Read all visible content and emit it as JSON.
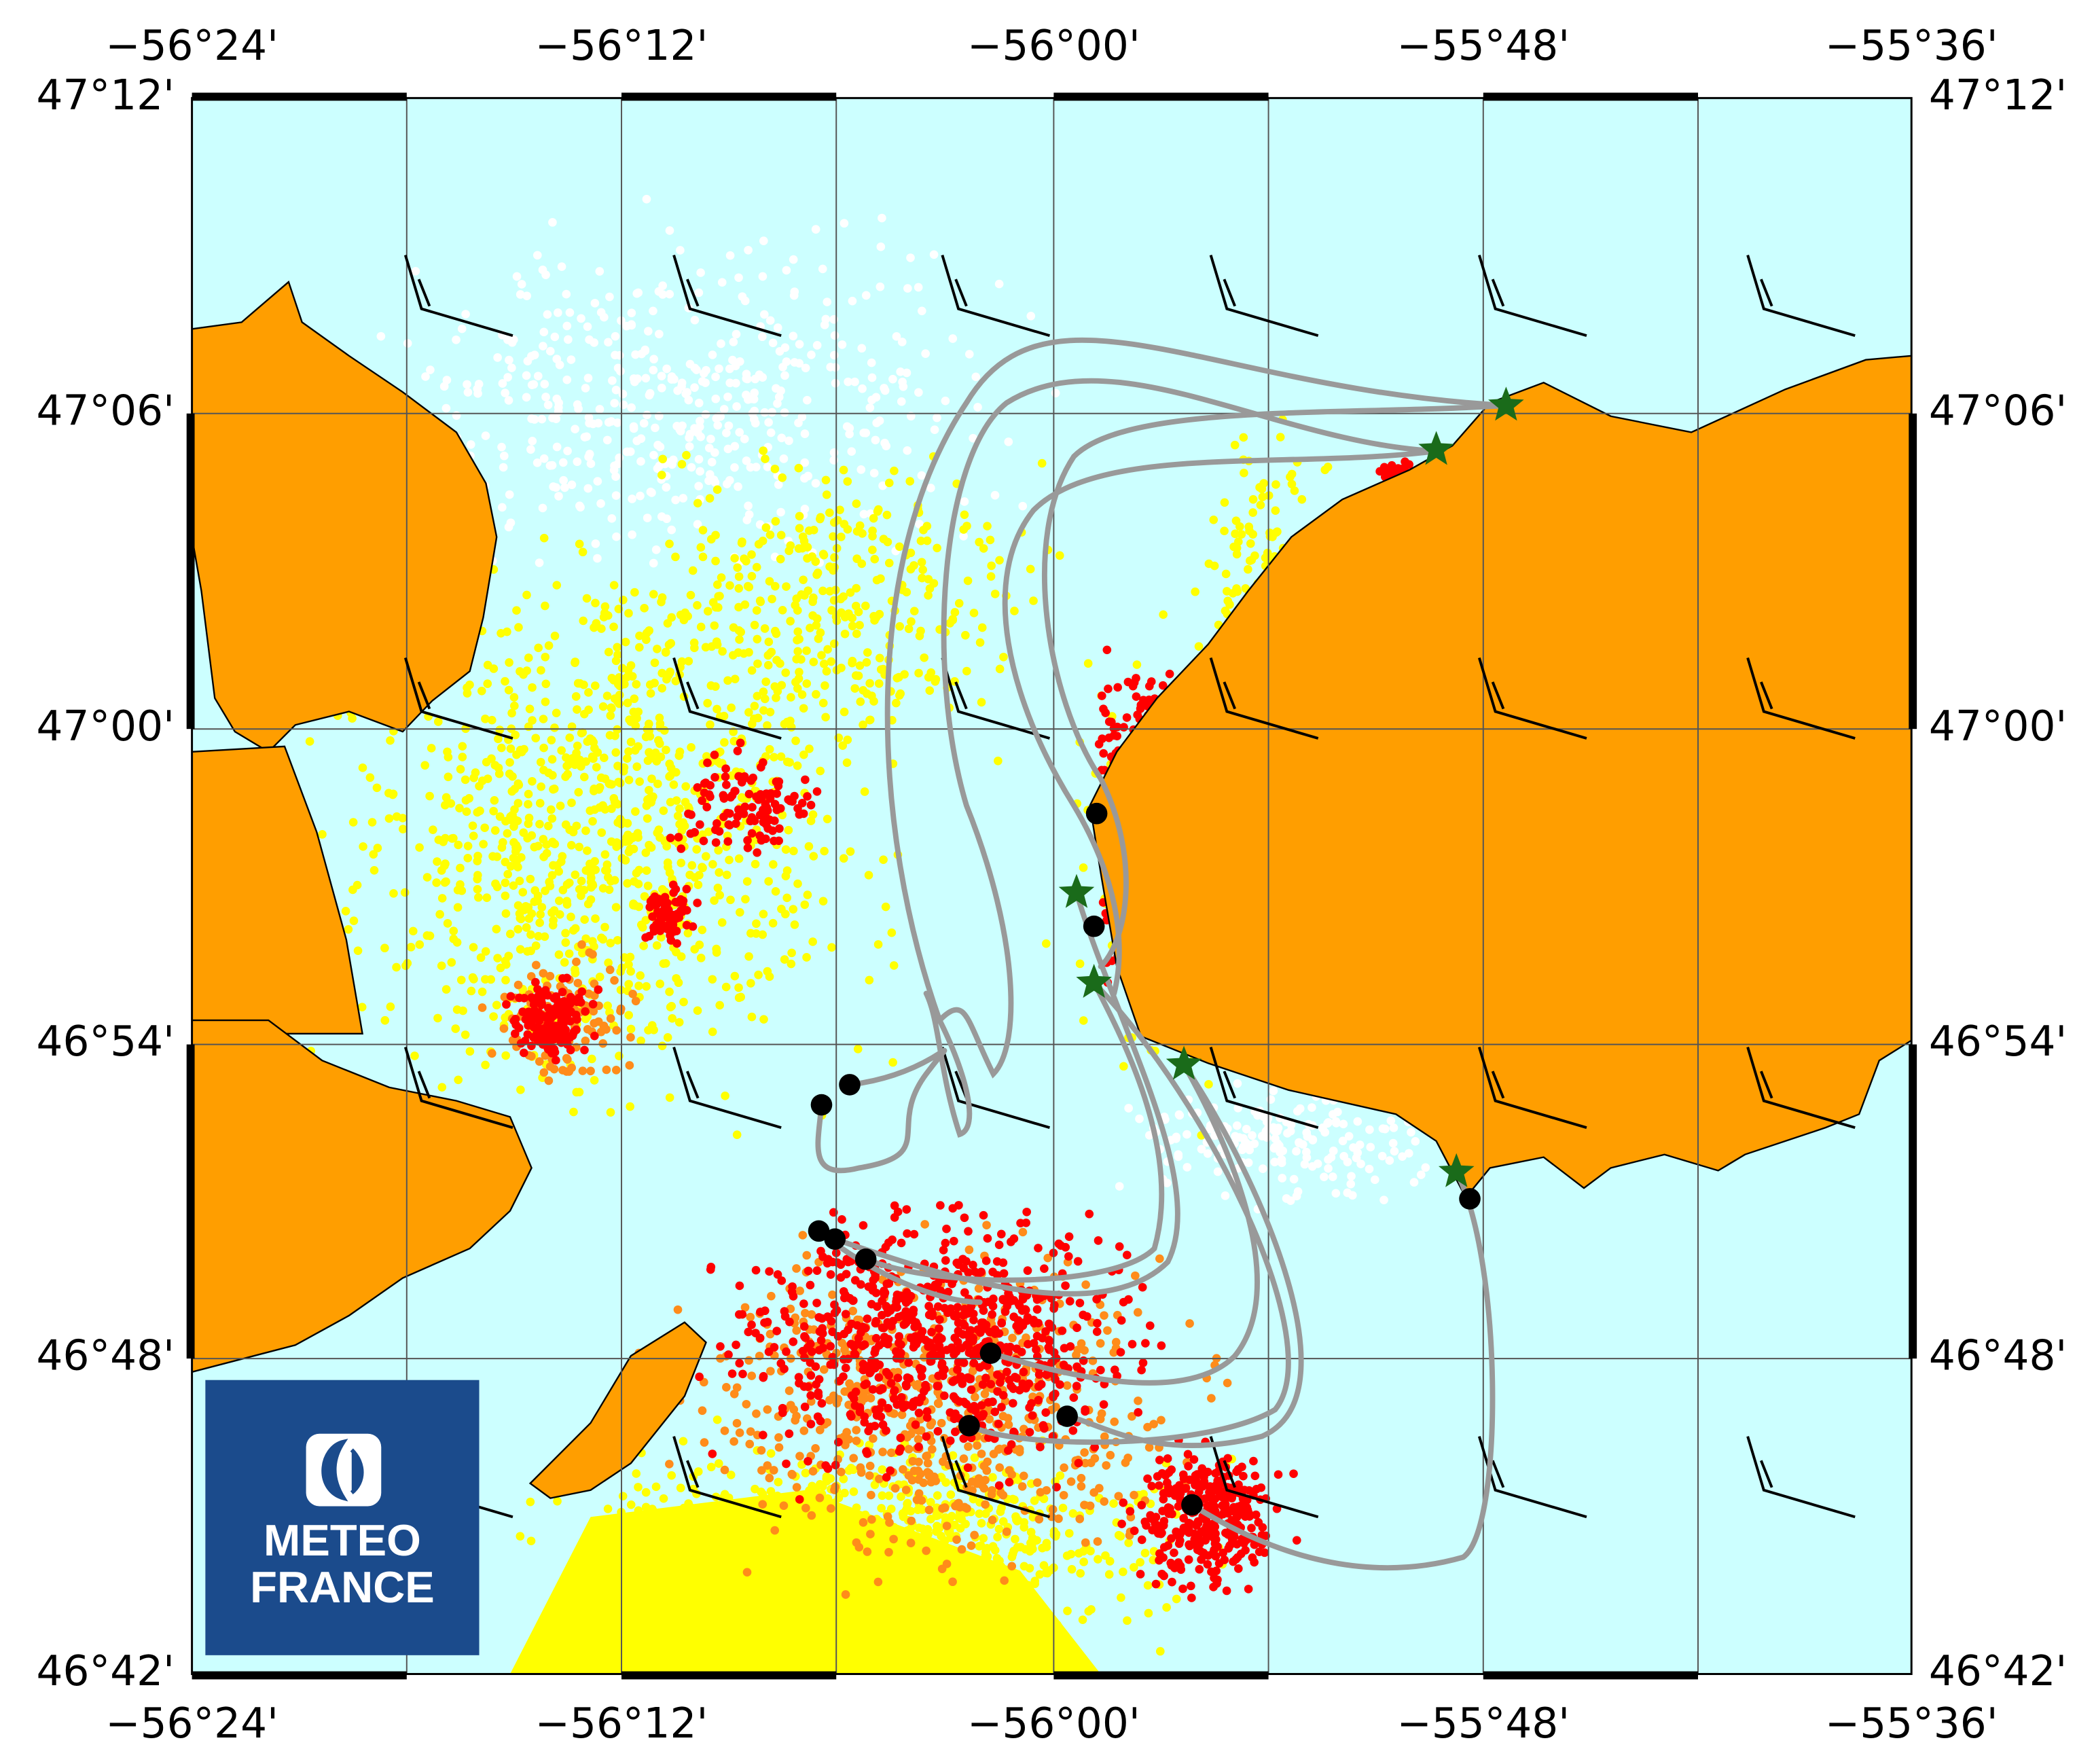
{
  "map": {
    "x_labels": [
      "−56°24'",
      "−56°12'",
      "−56°00'",
      "−55°48'",
      "−55°36'"
    ],
    "y_labels": [
      "47°12'",
      "47°06'",
      "47°00'",
      "46°54'",
      "46°48'",
      "46°42'"
    ],
    "logo": {
      "line1": "METEO",
      "line2": "FRANCE"
    }
  }
}
